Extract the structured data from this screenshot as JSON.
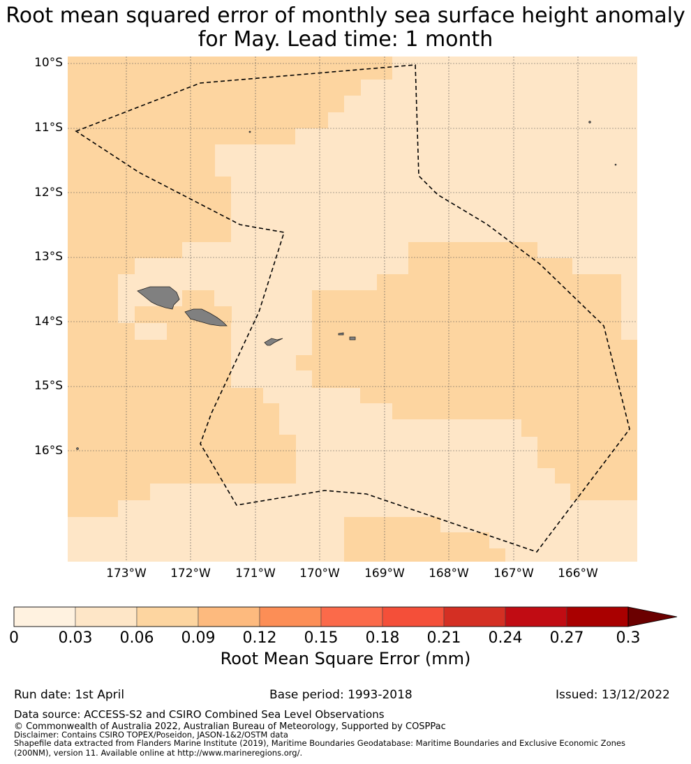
{
  "title_line1": "Root mean squared error of monthly sea surface height anomaly",
  "title_line2": "for May. Lead time: 1 month",
  "map": {
    "lat_labels": [
      "10°S",
      "11°S",
      "12°S",
      "13°S",
      "14°S",
      "15°S",
      "16°S"
    ],
    "lon_labels": [
      "173°W",
      "172°W",
      "171°W",
      "170°W",
      "169°W",
      "168°W",
      "167°W",
      "166°W"
    ],
    "colors": {
      "band_0_03": "#fee6c7",
      "band_03_06": "#fdd5a0",
      "land": "#808080",
      "boundary": "#000000",
      "grid": "#555555"
    }
  },
  "colorbar": {
    "label": "Root Mean Square Error (mm)",
    "ticks": [
      "0",
      "0.03",
      "0.06",
      "0.09",
      "0.12",
      "0.15",
      "0.18",
      "0.21",
      "0.24",
      "0.27",
      "0.3"
    ],
    "colors": [
      "#fff2e0",
      "#fee6c7",
      "#fdd5a0",
      "#fdba7e",
      "#fc8e56",
      "#fb6a4a",
      "#f44f39",
      "#d42f23",
      "#c10c13",
      "#a90000",
      "#6b0000"
    ]
  },
  "footer": {
    "run_date": "Run date: 1st April",
    "base_period": "Base period: 1993-2018",
    "issued": "Issued: 13/12/2022",
    "data_source": "Data source: ACCESS-S2 and CSIRO Combined Sea Level Observations",
    "copyright": "© Commonwealth of Australia 2022, Australian Bureau of Meteorology, Supported by COSPPac",
    "disclaimer": "Disclaimer: Contains CSIRO TOPEX/Poseidon, JASON-1&2/OSTM data",
    "shapefile_line1": "Shapefile data extracted from Flanders Marine Institute (2019), Maritime Boundaries Geodatabase: Maritime Boundaries and Exclusive Economic Zones",
    "shapefile_line2": "(200NM), version 11. Available online at http://www.marineregions.org/."
  }
}
